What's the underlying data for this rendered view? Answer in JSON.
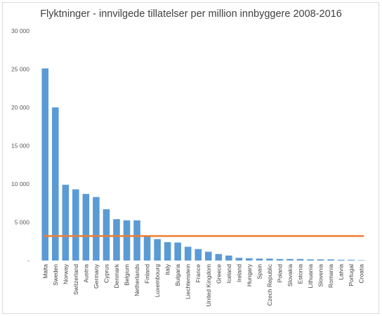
{
  "chart_data": {
    "type": "bar",
    "title": "Flyktninger - innvilgede tillatelser per million innbyggere 2008-2016",
    "xlabel": "",
    "ylabel": "",
    "ylim": [
      0,
      30000
    ],
    "yticks": [
      0,
      5000,
      10000,
      15000,
      20000,
      25000,
      30000
    ],
    "ytick_labels": [
      "-",
      "5 000",
      "10 000",
      "15 000",
      "20 000",
      "25 000",
      "30 000"
    ],
    "grid": false,
    "categories": [
      "Malta",
      "Sweden",
      "Norway",
      "Switzerland",
      "Austria",
      "Germany",
      "Cyprus",
      "Denmark",
      "Belgium",
      "Netherlands",
      "Finland",
      "Luxembourg",
      "Italy",
      "Bulgaria",
      "Liechtenstein",
      "France",
      "United Kingdom",
      "Greece",
      "Iceland",
      "Ireland",
      "Hungary",
      "Spain",
      "Czech Republic",
      "Poland",
      "Slovakia",
      "Estonia",
      "Lithuania",
      "Slovenia",
      "Romania",
      "Latvia",
      "Portugal",
      "Croatia"
    ],
    "series": [
      {
        "values": [
          25100,
          20000,
          9900,
          9300,
          8700,
          8300,
          6700,
          5400,
          5250,
          5250,
          3200,
          2800,
          2400,
          2350,
          1800,
          1500,
          1150,
          850,
          650,
          350,
          300,
          250,
          250,
          200,
          200,
          200,
          150,
          150,
          150,
          100,
          100,
          50
        ],
        "color": "#5b9bd5"
      }
    ],
    "reference_line": {
      "value": 3200,
      "color": "#ed7d31"
    }
  }
}
